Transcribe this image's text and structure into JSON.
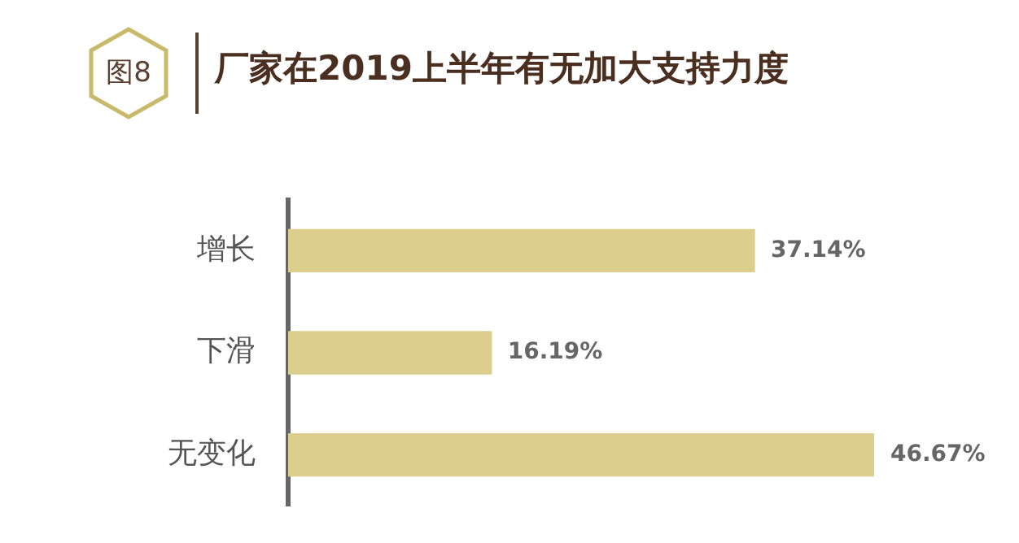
{
  "chart_data": {
    "type": "bar",
    "orientation": "horizontal",
    "title": "厂家在2019上半年有无加大支持力度",
    "annotations": [
      "图8"
    ],
    "categories": [
      "增长",
      "下滑",
      "无变化"
    ],
    "values": [
      37.14,
      16.19,
      46.67
    ],
    "value_labels": [
      "37.14%",
      "16.19%",
      "46.67%"
    ],
    "color": "#dccf8e"
  }
}
